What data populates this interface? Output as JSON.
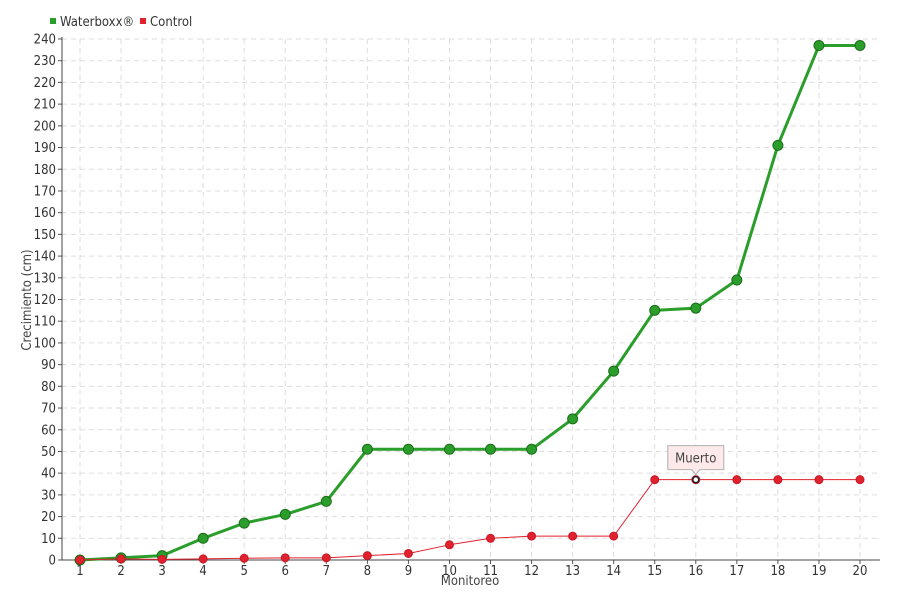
{
  "chart_data": {
    "type": "line",
    "title": "",
    "xlabel": "Monitoreo",
    "ylabel": "Crecimiento (cm)",
    "x": [
      1,
      2,
      3,
      4,
      5,
      6,
      7,
      8,
      9,
      10,
      11,
      12,
      13,
      14,
      15,
      16,
      17,
      18,
      19,
      20
    ],
    "ylim": [
      0,
      240
    ],
    "ytick_step": 10,
    "grid": true,
    "legend_position": "top-left",
    "series": [
      {
        "name": "Waterboxx®",
        "color": "#2a9d2a",
        "values": [
          0,
          1,
          2,
          10,
          17,
          21,
          27,
          51,
          51,
          51,
          51,
          51,
          65,
          87,
          115,
          116,
          129,
          191,
          237,
          237
        ]
      },
      {
        "name": "Control",
        "color": "#e0212e",
        "values": [
          0,
          0.5,
          0.3,
          0.5,
          0.8,
          1,
          1,
          2,
          3,
          7,
          10,
          11,
          11,
          11,
          37,
          37,
          37,
          37,
          37,
          37
        ]
      }
    ],
    "annotations": [
      {
        "text": "Muerto",
        "series": "Control",
        "x": 16
      }
    ]
  }
}
